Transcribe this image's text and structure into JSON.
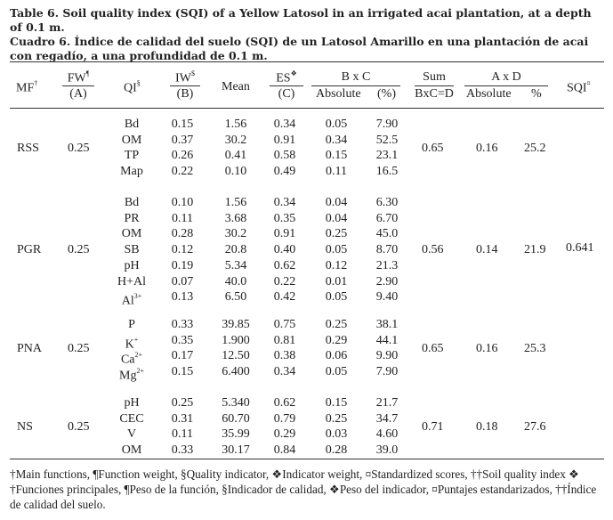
{
  "title": {
    "en": "Table 6. Soil quality index (SQI) of a Yellow Latosol in an irrigated acai plantation, at a depth of 0.1 m.",
    "es": "Cuadro 6. Índice de calidad del suelo (SQI) de un Latosol Amarillo en una plantación de acai con regadío, a una profundidad de 0.1 m."
  },
  "headers": {
    "mf": "MF",
    "mf_sup": "†",
    "fw": "FW",
    "fw_sup": "¶",
    "fw_sub": "(A)",
    "qi": "QI",
    "qi_sup": "§",
    "iw": "IW",
    "iw_sup": "$",
    "iw_sub": "(B)",
    "mean": "Mean",
    "es": "ES",
    "es_sup": "❖",
    "es_sub": "(C)",
    "bxc": "B x C",
    "absolute1": "Absolute",
    "pct1": "(%)",
    "sum": "Sum",
    "sum_sub": "BxC=D",
    "axd": "A x D",
    "absolute2": "Absolute",
    "pct2": "%",
    "sqi": "SQI",
    "sqi_sup": "¤"
  },
  "groups": [
    {
      "mf": "RSS",
      "fw": "0.25",
      "sum": "0.65",
      "abs": "0.16",
      "pct": "25.2",
      "rows": [
        {
          "qi": "Bd",
          "iw": "0.15",
          "mean": "1.56",
          "es": "0.34",
          "bxc": "0.05",
          "pct": "7.90"
        },
        {
          "qi": "OM",
          "iw": "0.37",
          "mean": "30.2",
          "es": "0.91",
          "bxc": "0.34",
          "pct": "52.5"
        },
        {
          "qi": "TP",
          "iw": "0.26",
          "mean": "0.41",
          "es": "0.58",
          "bxc": "0.15",
          "pct": "23.1"
        },
        {
          "qi": "Map",
          "iw": "0.22",
          "mean": "0.10",
          "es": "0.49",
          "bxc": "0.11",
          "pct": "16.5"
        }
      ]
    },
    {
      "mf": "PGR",
      "fw": "0.25",
      "sum": "0.56",
      "abs": "0.14",
      "pct": "21.9",
      "rows": [
        {
          "qi": "Bd",
          "iw": "0.10",
          "mean": "1.56",
          "es": "0.34",
          "bxc": "0.04",
          "pct": "6.30"
        },
        {
          "qi": "PR",
          "iw": "0.11",
          "mean": "3.68",
          "es": "0.35",
          "bxc": "0.04",
          "pct": "6.70"
        },
        {
          "qi": "OM",
          "iw": "0.28",
          "mean": "30.2",
          "es": "0.91",
          "bxc": "0.25",
          "pct": "45.0"
        },
        {
          "qi": "SB",
          "iw": "0.12",
          "mean": "20.8",
          "es": "0.40",
          "bxc": "0.05",
          "pct": "8.70"
        },
        {
          "qi": "pH",
          "iw": "0.19",
          "mean": "5.34",
          "es": "0.62",
          "bxc": "0.12",
          "pct": "21.3"
        },
        {
          "qi": "H+Al",
          "iw": "0.07",
          "mean": "40.0",
          "es": "0.22",
          "bxc": "0.01",
          "pct": "2.90"
        },
        {
          "qi": "Al",
          "qi_sup": "3+",
          "iw": "0.13",
          "mean": "6.50",
          "es": "0.42",
          "bxc": "0.05",
          "pct": "9.40"
        }
      ]
    },
    {
      "mf": "PNA",
      "fw": "0.25",
      "sum": "0.65",
      "abs": "0.16",
      "pct": "25.3",
      "rows": [
        {
          "qi": "P",
          "iw": "0.33",
          "mean": "39.85",
          "es": "0.75",
          "bxc": "0.25",
          "pct": "38.1"
        },
        {
          "qi": "K",
          "qi_sup": "+",
          "iw": "0.35",
          "mean": "1.900",
          "es": "0.81",
          "bxc": "0.29",
          "pct": "44.1"
        },
        {
          "qi": "Ca",
          "qi_sup": "2+",
          "iw": "0.17",
          "mean": "12.50",
          "es": "0.38",
          "bxc": "0.06",
          "pct": "9.90"
        },
        {
          "qi": "Mg",
          "qi_sup": "2+",
          "iw": "0.15",
          "mean": "6.400",
          "es": "0.34",
          "bxc": "0.05",
          "pct": "7.90"
        }
      ]
    },
    {
      "mf": "NS",
      "fw": "0.25",
      "sum": "0.71",
      "abs": "0.18",
      "pct": "27.6",
      "rows": [
        {
          "qi": "pH",
          "iw": "0.25",
          "mean": "5.340",
          "es": "0.62",
          "bxc": "0.15",
          "pct": "21.7"
        },
        {
          "qi": "CEC",
          "iw": "0.31",
          "mean": "60.70",
          "es": "0.79",
          "bxc": "0.25",
          "pct": "34.7"
        },
        {
          "qi": "V",
          "iw": "0.11",
          "mean": "35.99",
          "es": "0.29",
          "bxc": "0.03",
          "pct": "4.60"
        },
        {
          "qi": "OM",
          "iw": "0.33",
          "mean": "30.17",
          "es": "0.84",
          "bxc": "0.28",
          "pct": "39.0"
        }
      ]
    }
  ],
  "sqi_value": "0.641",
  "footnotes": {
    "en": "†Main functions, ¶Function weight, §Quality indicator, ❖Indicator weight, ¤Standardized scores, ††Soil quality index ❖",
    "es": "†Funciones principales, ¶Peso de la función, §Indicador de calidad, ❖Peso del indicador, ¤Puntajes estandarizados, ††Índice de calidad del suelo."
  }
}
